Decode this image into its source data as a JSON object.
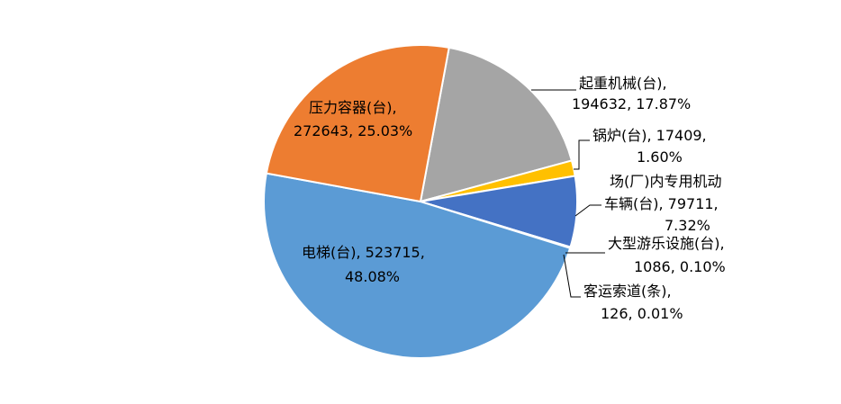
{
  "chart_data": {
    "type": "pie",
    "title": "",
    "slices": [
      {
        "label": "起重机械(台)",
        "value": 194632,
        "percent": "17.87%",
        "color": "#A5A5A5",
        "label_lines": [
          "起重机械(台),",
          "194632, 17.87%"
        ]
      },
      {
        "label": "锅炉(台)",
        "value": 17409,
        "percent": "1.60%",
        "color": "#FFC000",
        "label_lines": [
          "锅炉(台), 17409,",
          "1.60%"
        ]
      },
      {
        "label": "场(厂)内专用机动车辆(台)",
        "value": 79711,
        "percent": "7.32%",
        "color": "#4472C4",
        "label_lines": [
          "场(厂)内专用机动",
          "车辆(台), 79711,",
          "7.32%"
        ]
      },
      {
        "label": "大型游乐设施(台)",
        "value": 1086,
        "percent": "0.10%",
        "color": "#4472C4",
        "label_lines": [
          "大型游乐设施(台),",
          "1086, 0.10%"
        ]
      },
      {
        "label": "客运索道(条)",
        "value": 126,
        "percent": "0.01%",
        "color": "#4472C4",
        "label_lines": [
          "客运索道(条),",
          "126, 0.01%"
        ]
      },
      {
        "label": "电梯(台)",
        "value": 523715,
        "percent": "48.08%",
        "color": "#5B9BD5",
        "label_lines": [
          "电梯(台), 523715,",
          "48.08%"
        ]
      },
      {
        "label": "压力容器(台)",
        "value": 272643,
        "percent": "25.03%",
        "color": "#ED7D31",
        "label_lines": [
          "压力容器(台),",
          "272643, 25.03%"
        ]
      }
    ]
  }
}
